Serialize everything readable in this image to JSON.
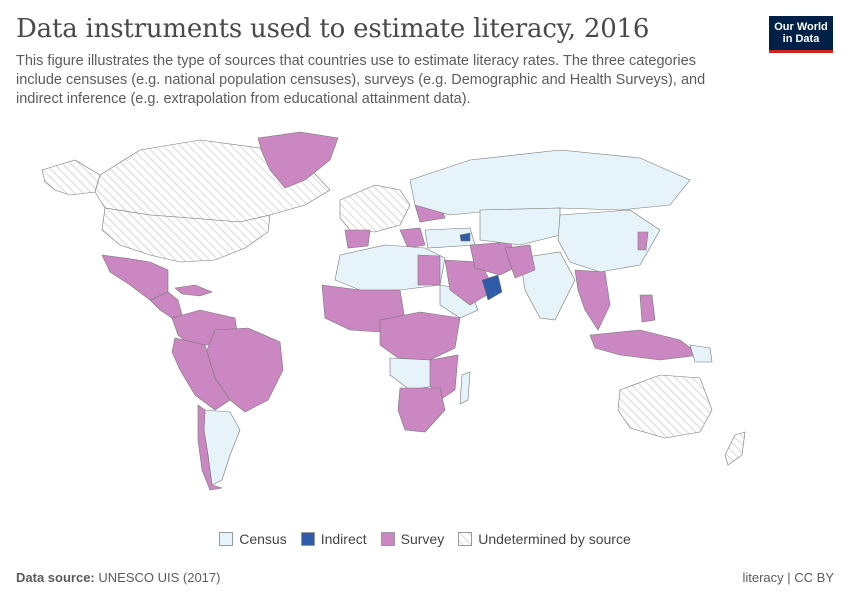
{
  "header": {
    "title": "Data instruments used to estimate literacy, 2016",
    "subtitle": "This figure illustrates the type of sources that countries use to estimate literacy rates. The three categories include censuses (e.g. national population censuses), surveys (e.g. Demographic and Health Surveys), and indirect inference (e.g. extrapolation from educational attainment data).",
    "logo_line1": "Our World",
    "logo_line2": "in Data"
  },
  "colors": {
    "census": "#e6f4f9",
    "indirect": "#2f5ba8",
    "survey": "#cb87c1",
    "undetermined_stripe": "#cccccc"
  },
  "legend": {
    "census": "Census",
    "indirect": "Indirect",
    "survey": "Survey",
    "undetermined": "Undetermined by source"
  },
  "footer": {
    "source_label": "Data source:",
    "source_value": "UNESCO UIS (2017)",
    "right": "literacy | CC BY"
  }
}
